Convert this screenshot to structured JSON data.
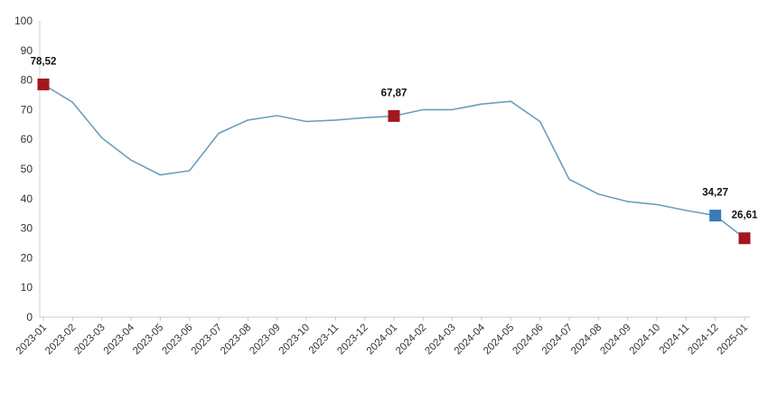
{
  "chart_data": {
    "type": "line",
    "title": "",
    "xlabel": "",
    "ylabel": "",
    "ylim": [
      0,
      100
    ],
    "yticks": [
      0,
      10,
      20,
      30,
      40,
      50,
      60,
      70,
      80,
      90,
      100
    ],
    "grid": false,
    "legend": "none",
    "categories": [
      "2023-01",
      "2023-02",
      "2023-03",
      "2023-04",
      "2023-05",
      "2023-06",
      "2023-07",
      "2023-08",
      "2023-09",
      "2023-10",
      "2023-11",
      "2023-12",
      "2024-01",
      "2024-02",
      "2024-03",
      "2024-04",
      "2024-05",
      "2024-06",
      "2024-07",
      "2024-08",
      "2024-09",
      "2024-10",
      "2024-11",
      "2024-12",
      "2025-01"
    ],
    "series": [
      {
        "name": "",
        "color": "#6a9fbe",
        "values": [
          78.52,
          72.5,
          60.5,
          53.0,
          48.0,
          49.4,
          62.0,
          66.5,
          68.0,
          66.0,
          66.5,
          67.3,
          67.87,
          70.0,
          70.0,
          71.9,
          72.8,
          66.0,
          46.5,
          41.5,
          39.0,
          38.0,
          36.0,
          34.27,
          26.61
        ]
      }
    ],
    "highlights": [
      {
        "index": 0,
        "label": "78,52",
        "color": "#a3171c",
        "label_side": "above"
      },
      {
        "index": 12,
        "label": "67,87",
        "color": "#a3171c",
        "label_side": "above"
      },
      {
        "index": 23,
        "label": "34,27",
        "color": "#3b7ab8",
        "label_side": "above"
      },
      {
        "index": 24,
        "label": "26,61",
        "color": "#a3171c",
        "label_side": "above"
      }
    ]
  }
}
